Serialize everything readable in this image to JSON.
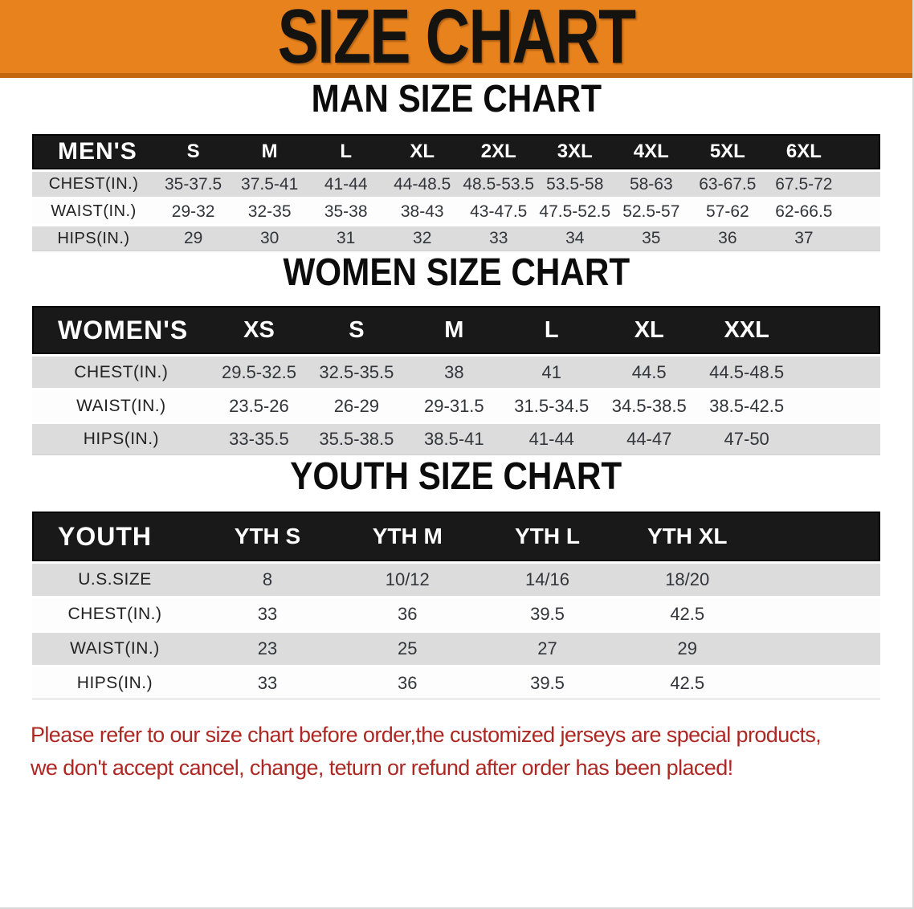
{
  "banner": {
    "title": "SIZE CHART"
  },
  "sections": [
    {
      "heading": "MAN SIZE CHART",
      "table": {
        "corner": "MEN'S",
        "columns": [
          "S",
          "M",
          "L",
          "XL",
          "2XL",
          "3XL",
          "4XL",
          "5XL",
          "6XL"
        ],
        "rows": [
          {
            "label": "CHEST(IN.)",
            "values": [
              "35-37.5",
              "37.5-41",
              "41-44",
              "44-48.5",
              "48.5-53.5",
              "53.5-58",
              "58-63",
              "63-67.5",
              "67.5-72"
            ]
          },
          {
            "label": "WAIST(IN.)",
            "values": [
              "29-32",
              "32-35",
              "35-38",
              "38-43",
              "43-47.5",
              "47.5-52.5",
              "52.5-57",
              "57-62",
              "62-66.5"
            ]
          },
          {
            "label": "HIPS(IN.)",
            "values": [
              "29",
              "30",
              "31",
              "32",
              "33",
              "34",
              "35",
              "36",
              "37"
            ]
          }
        ]
      }
    },
    {
      "heading": "WOMEN SIZE CHART",
      "table": {
        "corner": "WOMEN'S",
        "columns": [
          "XS",
          "S",
          "M",
          "L",
          "XL",
          "XXL"
        ],
        "rows": [
          {
            "label": "CHEST(IN.)",
            "values": [
              "29.5-32.5",
              "32.5-35.5",
              "38",
              "41",
              "44.5",
              "44.5-48.5"
            ]
          },
          {
            "label": "WAIST(IN.)",
            "values": [
              "23.5-26",
              "26-29",
              "29-31.5",
              "31.5-34.5",
              "34.5-38.5",
              "38.5-42.5"
            ]
          },
          {
            "label": "HIPS(IN.)",
            "values": [
              "33-35.5",
              "35.5-38.5",
              "38.5-41",
              "41-44",
              "44-47",
              "47-50"
            ]
          }
        ]
      }
    },
    {
      "heading": "YOUTH SIZE CHART",
      "table": {
        "corner": "YOUTH",
        "columns": [
          "YTH S",
          "YTH M",
          "YTH L",
          "YTH XL"
        ],
        "rows": [
          {
            "label": "U.S.SIZE",
            "values": [
              "8",
              "10/12",
              "14/16",
              "18/20"
            ]
          },
          {
            "label": "CHEST(IN.)",
            "values": [
              "33",
              "36",
              "39.5",
              "42.5"
            ]
          },
          {
            "label": "WAIST(IN.)",
            "values": [
              "23",
              "25",
              "27",
              "29"
            ]
          },
          {
            "label": "HIPS(IN.)",
            "values": [
              "33",
              "36",
              "39.5",
              "42.5"
            ]
          }
        ]
      }
    }
  ],
  "footer": {
    "line1": "Please refer to our size chart before order,the customized jerseys are special products,",
    "line2": "we don't accept cancel, change, teturn or refund after order has been placed!"
  },
  "colors": {
    "banner_bg": "#E8821D",
    "banner_border": "#C2670E",
    "header_bg": "#191919",
    "row_alt": "#DCDCDC",
    "row_white": "#FDFDFD",
    "footer_red": "#AD2723",
    "text_dark": "#34353B"
  }
}
